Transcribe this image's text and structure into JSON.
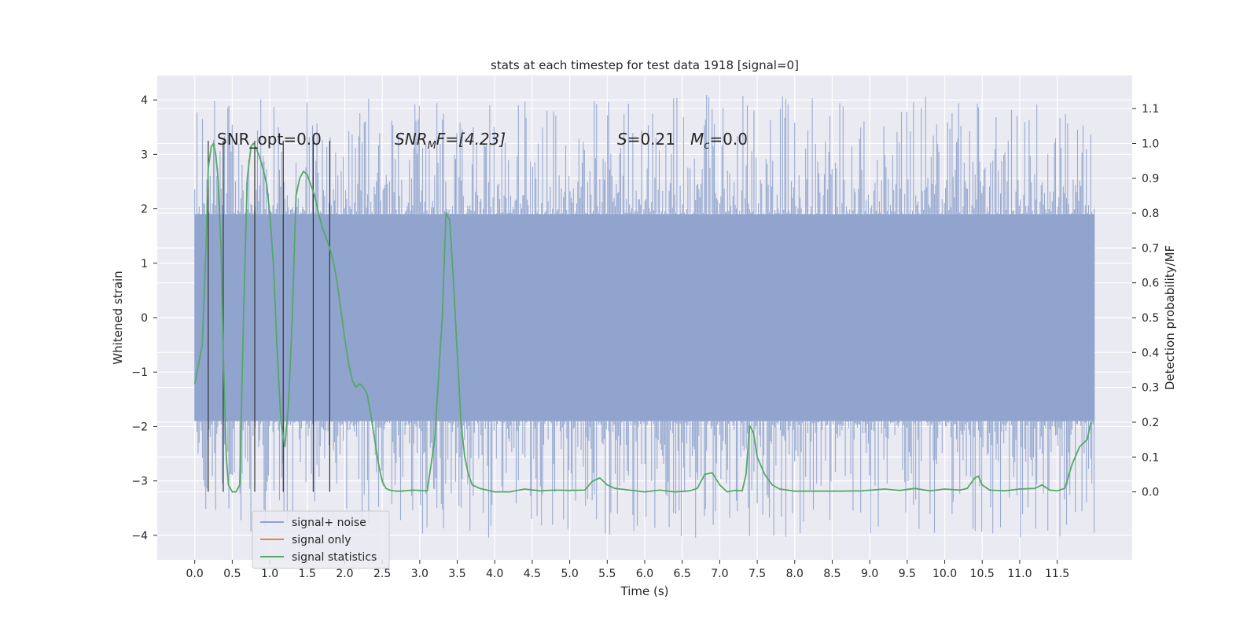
{
  "chart_data": {
    "type": "line",
    "title": "stats at each timestep for test data 1918 [signal=0]",
    "xlabel": "Time (s)",
    "ylabel": "Whitened strain",
    "y2label": "Detection probability/MF",
    "xlim": [
      -0.5,
      12.5
    ],
    "ylim": [
      -4.45,
      4.45
    ],
    "y2lim": [
      -0.195,
      1.195
    ],
    "x_ticks": [
      0.0,
      0.5,
      1.0,
      1.5,
      2.0,
      2.5,
      3.0,
      3.5,
      4.0,
      4.5,
      5.0,
      5.5,
      6.0,
      6.5,
      7.0,
      7.5,
      8.0,
      8.5,
      9.0,
      9.5,
      10.0,
      10.5,
      11.0,
      11.5
    ],
    "x_tick_labels": [
      "0.0",
      "0.5",
      "1.0",
      "1.5",
      "2.0",
      "2.5",
      "3.0",
      "3.5",
      "4.0",
      "4.5",
      "5.0",
      "5.5",
      "6.0",
      "6.5",
      "7.0",
      "7.5",
      "8.0",
      "8.5",
      "9.0",
      "9.5",
      "10.0",
      "10.5",
      "11.0",
      "11.5"
    ],
    "y_ticks": [
      4,
      3,
      2,
      1,
      0,
      -1,
      -2,
      -3,
      -4
    ],
    "y_tick_labels": [
      "4",
      "3",
      "2",
      "1",
      "0",
      "−1",
      "−2",
      "−3",
      "−4"
    ],
    "y2_ticks": [
      1.1,
      1.0,
      0.9,
      0.8,
      0.7,
      0.6,
      0.5,
      0.4,
      0.3,
      0.2,
      0.1,
      0.0
    ],
    "y2_tick_labels": [
      "1.1",
      "1.0",
      "0.9",
      "0.8",
      "0.7",
      "0.6",
      "0.5",
      "0.4",
      "0.3",
      "0.2",
      "0.1",
      "0.0"
    ],
    "grid": true,
    "legend_position": "lower-left",
    "annotations": {
      "snr_opt": "SNR_opt=0.0",
      "snr_mf_base": "SNR",
      "snr_mf_sub": "M",
      "snr_mf_rest": "F=[4.23]",
      "s_label": "S",
      "s_value": "=0.21",
      "mc_base": "M",
      "mc_sub": "c",
      "mc_value": "=0.0"
    },
    "series": [
      {
        "name": "signal+ noise",
        "color": "#8fa3cc",
        "x_range": [
          0.0,
          12.0
        ],
        "envelope_typical": [
          -1.9,
          1.9
        ],
        "spike_range": [
          -4.05,
          4.1
        ]
      },
      {
        "name": "signal only",
        "color": "#dd8452",
        "x": [],
        "y": []
      },
      {
        "name": "signal statistics",
        "color": "#55a868",
        "x": [
          0.0,
          0.1,
          0.15,
          0.18,
          0.22,
          0.25,
          0.28,
          0.31,
          0.35,
          0.38,
          0.42,
          0.45,
          0.5,
          0.55,
          0.6,
          0.65,
          0.7,
          0.75,
          0.78,
          0.81,
          0.85,
          0.88,
          0.92,
          0.96,
          1.0,
          1.05,
          1.1,
          1.15,
          1.2,
          1.25,
          1.3,
          1.35,
          1.4,
          1.45,
          1.5,
          1.55,
          1.6,
          1.65,
          1.7,
          1.75,
          1.8,
          1.85,
          1.9,
          1.95,
          2.0,
          2.05,
          2.1,
          2.15,
          2.2,
          2.25,
          2.3,
          2.35,
          2.4,
          2.45,
          2.5,
          2.55,
          2.6,
          2.65,
          2.7,
          2.75,
          2.8,
          2.9,
          3.0,
          3.1,
          3.2,
          3.3,
          3.35,
          3.4,
          3.45,
          3.5,
          3.55,
          3.6,
          3.65,
          3.7,
          3.8,
          3.9,
          4.0,
          4.2,
          4.4,
          4.6,
          4.8,
          5.0,
          5.2,
          5.3,
          5.4,
          5.5,
          5.6,
          5.8,
          6.0,
          6.2,
          6.4,
          6.6,
          6.7,
          6.8,
          6.9,
          7.0,
          7.1,
          7.2,
          7.3,
          7.35,
          7.4,
          7.45,
          7.5,
          7.6,
          7.7,
          7.8,
          8.0,
          8.3,
          8.6,
          8.9,
          9.2,
          9.4,
          9.6,
          9.8,
          10.0,
          10.2,
          10.3,
          10.4,
          10.45,
          10.5,
          10.6,
          10.8,
          11.0,
          11.2,
          11.3,
          11.4,
          11.5,
          11.6,
          11.7,
          11.8,
          11.9,
          11.95
        ],
        "y": [
          0.31,
          0.42,
          0.7,
          0.93,
          0.99,
          1.0,
          0.97,
          0.9,
          0.7,
          0.4,
          0.1,
          0.02,
          0.0,
          0.0,
          0.02,
          0.5,
          0.9,
          0.99,
          1.0,
          0.99,
          0.97,
          0.95,
          0.92,
          0.88,
          0.8,
          0.65,
          0.4,
          0.2,
          0.13,
          0.25,
          0.5,
          0.85,
          0.9,
          0.92,
          0.91,
          0.88,
          0.85,
          0.8,
          0.76,
          0.73,
          0.7,
          0.66,
          0.6,
          0.52,
          0.44,
          0.37,
          0.32,
          0.3,
          0.31,
          0.3,
          0.28,
          0.22,
          0.15,
          0.08,
          0.03,
          0.01,
          0.005,
          0.003,
          0.002,
          0.002,
          0.003,
          0.005,
          0.004,
          0.003,
          0.15,
          0.5,
          0.8,
          0.78,
          0.6,
          0.4,
          0.2,
          0.1,
          0.05,
          0.02,
          0.01,
          0.005,
          0.0,
          0.0,
          0.008,
          0.003,
          0.005,
          0.004,
          0.005,
          0.03,
          0.04,
          0.02,
          0.01,
          0.005,
          0.0,
          0.005,
          0.0,
          0.003,
          0.01,
          0.05,
          0.055,
          0.02,
          0.0,
          0.004,
          0.003,
          0.05,
          0.19,
          0.17,
          0.1,
          0.05,
          0.02,
          0.008,
          0.002,
          0.002,
          0.002,
          0.003,
          0.008,
          0.004,
          0.01,
          0.003,
          0.008,
          0.005,
          0.01,
          0.04,
          0.045,
          0.02,
          0.005,
          0.003,
          0.008,
          0.01,
          0.02,
          0.005,
          0.003,
          0.01,
          0.08,
          0.13,
          0.15,
          0.2
        ]
      }
    ],
    "vertical_markers": {
      "color": "#333333",
      "x": [
        0.18,
        0.38,
        0.8,
        1.18,
        1.58,
        1.8
      ],
      "y_top": 3.25,
      "y_bottom": -3.2
    }
  }
}
